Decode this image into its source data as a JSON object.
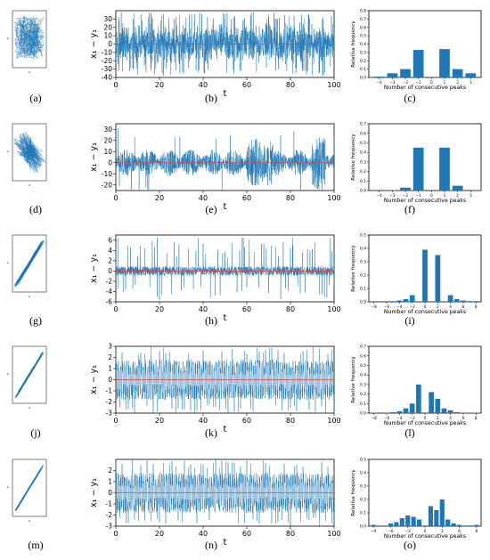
{
  "chart_data": [
    {
      "id": "a",
      "caption": "(a)",
      "type": "scatter",
      "title": "",
      "xlabel": "x₁",
      "ylabel": "x₂"
    },
    {
      "id": "b",
      "caption": "(b)",
      "type": "line",
      "title": "",
      "xlabel": "t",
      "ylabel": "x₁ − y₁",
      "xlim": [
        0,
        100
      ],
      "ylim": [
        -40,
        40
      ],
      "xticks": [
        0,
        20,
        40,
        60,
        80,
        100
      ],
      "yticks": [
        -40,
        -30,
        -20,
        -10,
        0,
        10,
        20,
        30
      ],
      "series": [
        {
          "color": "#1f77b4",
          "amplitude_envelope": "dense spikes, typical ±20, peaks to ±38"
        }
      ],
      "reference_line": {
        "y": 0,
        "color": "#e8403a"
      }
    },
    {
      "id": "c",
      "caption": "(c)",
      "type": "bar",
      "title": "",
      "xlabel": "Number of consecutive peaks",
      "ylabel": "Relative frequency",
      "categories": [
        "-4",
        "-3",
        "-2",
        "-1",
        "0",
        "1",
        "2",
        "3"
      ],
      "values": [
        0.01,
        0.05,
        0.1,
        0.33,
        0.0,
        0.34,
        0.1,
        0.05
      ],
      "ylim": [
        0,
        0.8
      ],
      "yticks": [
        0.0,
        0.1,
        0.2,
        0.3,
        0.4,
        0.5,
        0.6,
        0.7,
        0.8
      ]
    },
    {
      "id": "d",
      "caption": "(d)",
      "type": "scatter",
      "title": "",
      "xlabel": "x₁",
      "ylabel": "x₂"
    },
    {
      "id": "e",
      "caption": "(e)",
      "type": "line",
      "title": "",
      "xlabel": "t",
      "ylabel": "x₁ − y₁",
      "xlim": [
        0,
        100
      ],
      "ylim": [
        -25,
        35
      ],
      "xticks": [
        0,
        20,
        40,
        60,
        80,
        100
      ],
      "yticks": [
        -20,
        -10,
        0,
        10,
        20,
        30
      ],
      "series": [
        {
          "color": "#1f77b4"
        }
      ],
      "reference_line": {
        "y": 0,
        "color": "#e8403a"
      }
    },
    {
      "id": "f",
      "caption": "(f)",
      "type": "bar",
      "title": "",
      "xlabel": "Number of consecutive peaks",
      "ylabel": "Relative frequency",
      "categories": [
        "-4",
        "-3",
        "-2",
        "-1",
        "0",
        "1",
        "2",
        "3"
      ],
      "values": [
        0.0,
        0.005,
        0.03,
        0.45,
        0.0,
        0.45,
        0.05,
        0.0
      ],
      "ylim": [
        0,
        0.7
      ],
      "yticks": [
        0.0,
        0.1,
        0.2,
        0.3,
        0.4,
        0.5,
        0.6,
        0.7
      ]
    },
    {
      "id": "g",
      "caption": "(g)",
      "type": "scatter",
      "title": "",
      "xlabel": "x₁",
      "ylabel": "x₂"
    },
    {
      "id": "h",
      "caption": "(h)",
      "type": "line",
      "title": "",
      "xlabel": "t",
      "ylabel": "x₁ − y₁",
      "xlim": [
        0,
        100
      ],
      "ylim": [
        -6,
        7
      ],
      "xticks": [
        0,
        20,
        40,
        60,
        80,
        100
      ],
      "yticks": [
        -6,
        -4,
        -2,
        0,
        2,
        4,
        6
      ],
      "series": [
        {
          "color": "#1f77b4"
        }
      ],
      "reference_line": {
        "y": 0,
        "color": "#e8403a"
      }
    },
    {
      "id": "i",
      "caption": "(i)",
      "type": "bar",
      "title": "",
      "xlabel": "Number of consecutive peaks",
      "ylabel": "Relative frequency",
      "categories": [
        "-8",
        "-7",
        "-6",
        "-5",
        "-4",
        "-3",
        "-2",
        "-1",
        "0",
        "1",
        "2",
        "3",
        "4",
        "5",
        "6",
        "7",
        "8"
      ],
      "values": [
        0.0,
        0.0,
        0.0,
        0.005,
        0.01,
        0.02,
        0.05,
        0.0,
        0.39,
        0.0,
        0.35,
        0.0,
        0.05,
        0.02,
        0.01,
        0.005,
        0.005
      ],
      "ylim": [
        0,
        0.5
      ],
      "yticks": [
        0.0,
        0.1,
        0.2,
        0.3,
        0.4,
        0.5
      ],
      "xticks_shown": [
        "-8",
        "-6",
        "-4",
        "-2",
        "0",
        "2",
        "4",
        "6",
        "8"
      ]
    },
    {
      "id": "j",
      "caption": "(j)",
      "type": "scatter",
      "title": "",
      "xlabel": "x₁",
      "ylabel": "x₂"
    },
    {
      "id": "k",
      "caption": "(k)",
      "type": "line",
      "title": "",
      "xlabel": "t",
      "ylabel": "x₁ − y₁",
      "xlim": [
        0,
        100
      ],
      "ylim": [
        -3,
        3
      ],
      "xticks": [
        0,
        20,
        40,
        60,
        80,
        100
      ],
      "yticks": [
        -3,
        -2,
        -1,
        0,
        1,
        2,
        3
      ],
      "series": [
        {
          "color": "#1f77b4"
        }
      ],
      "reference_line": {
        "y": 0,
        "color": "#e8403a"
      }
    },
    {
      "id": "l",
      "caption": "(l)",
      "type": "bar",
      "title": "",
      "xlabel": "Number of consecutive peaks",
      "ylabel": "Relative frequency",
      "categories": [
        "-8",
        "-7",
        "-6",
        "-5",
        "-4",
        "-3",
        "-2",
        "-1",
        "0",
        "1",
        "2",
        "3",
        "4",
        "5",
        "6",
        "7",
        "8"
      ],
      "values": [
        0.005,
        0.0,
        0.005,
        0.01,
        0.02,
        0.05,
        0.1,
        0.3,
        0.0,
        0.22,
        0.15,
        0.05,
        0.03,
        0.01,
        0.005,
        0.005,
        0.005
      ],
      "ylim": [
        0,
        0.7
      ],
      "yticks": [
        0.0,
        0.1,
        0.2,
        0.3,
        0.4,
        0.5,
        0.6,
        0.7
      ],
      "xticks_shown": [
        "-8",
        "-6",
        "-4",
        "-2",
        "0",
        "2",
        "4",
        "6",
        "8"
      ]
    },
    {
      "id": "m",
      "caption": "(m)",
      "type": "scatter",
      "title": "",
      "xlabel": "x₁",
      "ylabel": "x₂"
    },
    {
      "id": "n",
      "caption": "(n)",
      "type": "line",
      "title": "",
      "xlabel": "t",
      "ylabel": "x₁ − y₁",
      "xlim": [
        0,
        100
      ],
      "ylim": [
        -3,
        3
      ],
      "xticks": [
        0,
        20,
        40,
        60,
        80,
        100
      ],
      "yticks": [
        -3,
        -2,
        -1,
        0,
        1,
        2
      ],
      "series": [
        {
          "color": "#1f77b4"
        }
      ],
      "reference_line": {
        "y": 0,
        "color": "#e8403a"
      }
    },
    {
      "id": "o",
      "caption": "(o)",
      "type": "bar",
      "title": "",
      "xlabel": "Number of consecutive peaks",
      "ylabel": "Relative frequency",
      "categories": [
        "-9",
        "-8",
        "-7",
        "-6",
        "-5",
        "-4",
        "-3",
        "-2",
        "-1",
        "0",
        "1",
        "2",
        "3",
        "4",
        "5",
        "6",
        "7",
        "8",
        "9"
      ],
      "values": [
        0.01,
        0.005,
        0.0,
        0.02,
        0.03,
        0.06,
        0.08,
        0.07,
        0.05,
        0.0,
        0.15,
        0.12,
        0.2,
        0.05,
        0.02,
        0.01,
        0.005,
        0.005,
        0.01
      ],
      "ylim": [
        0,
        0.5
      ],
      "yticks": [
        0.0,
        0.1,
        0.2,
        0.3,
        0.4,
        0.5
      ],
      "xticks_shown": [
        "-9",
        "-6",
        "-3",
        "0",
        "3",
        "6",
        "9"
      ]
    }
  ],
  "colors": {
    "series": "#1f77b4",
    "reference": "#e8403a",
    "axis": "#000000"
  }
}
